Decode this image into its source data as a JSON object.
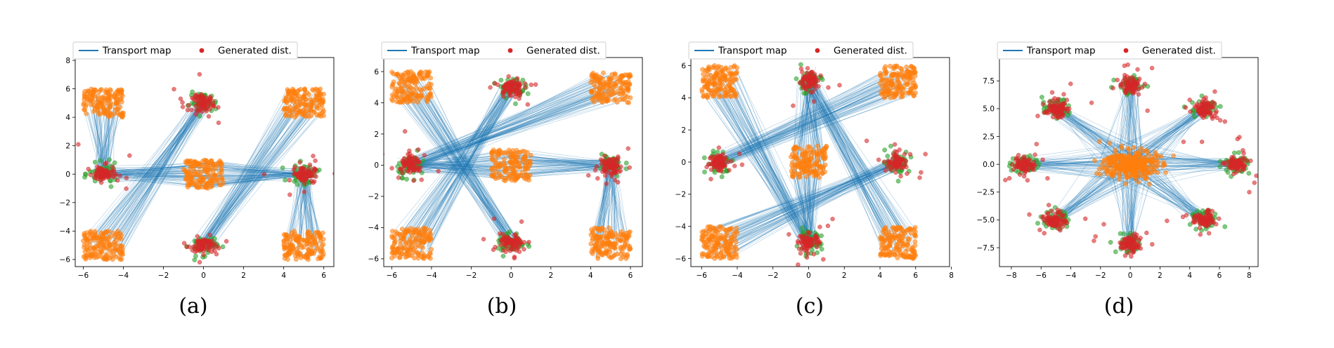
{
  "legend": {
    "line_label": "Transport map",
    "points_label": "Generated dist."
  },
  "colors": {
    "transport": "#1f77b4",
    "source": "#ff7f0e",
    "target": "#2ca02c",
    "generated": "#d62728"
  },
  "chart_data": [
    {
      "type": "scatter",
      "caption": "(a)",
      "xlim": [
        -6.4,
        6.5
      ],
      "ylim": [
        -6.5,
        8.2
      ],
      "xticks": [
        -6,
        -4,
        -2,
        0,
        2,
        4,
        6
      ],
      "yticks": [
        -6,
        -4,
        -2,
        0,
        2,
        4,
        6,
        8
      ],
      "xtick_labels": [
        "−6",
        "−4",
        "−2",
        "0",
        "2",
        "4",
        "6"
      ],
      "ytick_labels": [
        "−6",
        "−4",
        "−2",
        "0",
        "2",
        "4",
        "6",
        "8"
      ],
      "source_centers": [
        [
          -5,
          5
        ],
        [
          -5,
          -5
        ],
        [
          0,
          0
        ],
        [
          5,
          5
        ],
        [
          5,
          -5
        ]
      ],
      "target_centers": [
        [
          0,
          5
        ],
        [
          0,
          -5
        ],
        [
          -5,
          0
        ],
        [
          5,
          0
        ]
      ],
      "transport_pairs": [
        [
          [
            -5,
            5
          ],
          [
            -5,
            0
          ]
        ],
        [
          [
            -5,
            -5
          ],
          [
            0,
            5
          ]
        ],
        [
          [
            0,
            0
          ],
          [
            -5,
            0
          ]
        ],
        [
          [
            0,
            0
          ],
          [
            5,
            0
          ]
        ],
        [
          [
            5,
            5
          ],
          [
            0,
            -5
          ]
        ],
        [
          [
            5,
            -5
          ],
          [
            5,
            0
          ]
        ]
      ],
      "source_spread": 1.0,
      "target_spread": 0.35,
      "grid": false,
      "legend_position": "top-left"
    },
    {
      "type": "scatter",
      "caption": "(b)",
      "xlim": [
        -6.4,
        6.6
      ],
      "ylim": [
        -6.5,
        6.9
      ],
      "xticks": [
        -6,
        -4,
        -2,
        0,
        2,
        4,
        6
      ],
      "yticks": [
        -6,
        -4,
        -2,
        0,
        2,
        4,
        6
      ],
      "xtick_labels": [
        "−6",
        "−4",
        "−2",
        "0",
        "2",
        "4",
        "6"
      ],
      "ytick_labels": [
        "−6",
        "−4",
        "−2",
        "0",
        "2",
        "4",
        "6"
      ],
      "source_centers": [
        [
          -5,
          5
        ],
        [
          -5,
          -5
        ],
        [
          0,
          0
        ],
        [
          5,
          5
        ],
        [
          5,
          -5
        ]
      ],
      "target_centers": [
        [
          0,
          5
        ],
        [
          0,
          -5
        ],
        [
          -5,
          0
        ],
        [
          5,
          0
        ]
      ],
      "transport_pairs": [
        [
          [
            -5,
            5
          ],
          [
            0,
            -5
          ]
        ],
        [
          [
            -5,
            -5
          ],
          [
            0,
            5
          ]
        ],
        [
          [
            0,
            0
          ],
          [
            -5,
            0
          ]
        ],
        [
          [
            0,
            0
          ],
          [
            5,
            0
          ]
        ],
        [
          [
            5,
            5
          ],
          [
            -5,
            0
          ]
        ],
        [
          [
            5,
            -5
          ],
          [
            5,
            0
          ]
        ]
      ],
      "source_spread": 1.0,
      "target_spread": 0.35,
      "grid": false,
      "legend_position": "top-left"
    },
    {
      "type": "scatter",
      "caption": "(c)",
      "xlim": [
        -6.6,
        7.9
      ],
      "ylim": [
        -6.5,
        6.5
      ],
      "xticks": [
        -6,
        -4,
        -2,
        0,
        2,
        4,
        6,
        8
      ],
      "yticks": [
        -6,
        -4,
        -2,
        0,
        2,
        4,
        6
      ],
      "xtick_labels": [
        "−6",
        "−4",
        "−2",
        "0",
        "2",
        "4",
        "6",
        "8"
      ],
      "ytick_labels": [
        "−6",
        "−4",
        "−2",
        "0",
        "2",
        "4",
        "6"
      ],
      "source_centers": [
        [
          -5,
          5
        ],
        [
          -5,
          -5
        ],
        [
          0,
          0
        ],
        [
          5,
          5
        ],
        [
          5,
          -5
        ]
      ],
      "target_centers": [
        [
          0,
          5
        ],
        [
          0,
          -5
        ],
        [
          -5,
          0
        ],
        [
          5,
          0
        ]
      ],
      "transport_pairs": [
        [
          [
            -5,
            5
          ],
          [
            0,
            -5
          ]
        ],
        [
          [
            -5,
            -5
          ],
          [
            5,
            0
          ]
        ],
        [
          [
            0,
            0
          ],
          [
            0,
            5
          ]
        ],
        [
          [
            0,
            0
          ],
          [
            0,
            -5
          ]
        ],
        [
          [
            5,
            5
          ],
          [
            -5,
            0
          ]
        ],
        [
          [
            5,
            -5
          ],
          [
            0,
            5
          ]
        ]
      ],
      "source_spread": 1.0,
      "target_spread": 0.35,
      "grid": false,
      "legend_position": "top-left"
    },
    {
      "type": "scatter",
      "caption": "(d)",
      "xlim": [
        -8.8,
        8.6
      ],
      "ylim": [
        -9.2,
        9.6
      ],
      "xticks": [
        -8,
        -6,
        -4,
        -2,
        0,
        2,
        4,
        6,
        8
      ],
      "yticks": [
        -7.5,
        -5,
        -2.5,
        0,
        2.5,
        5,
        7.5
      ],
      "xtick_labels": [
        "−8",
        "−6",
        "−4",
        "−2",
        "0",
        "2",
        "4",
        "6",
        "8"
      ],
      "ytick_labels": [
        "−7.5",
        "−5.0",
        "−2.5",
        "0.0",
        "2.5",
        "5.0",
        "7.5"
      ],
      "source_centers": [
        [
          0,
          0
        ]
      ],
      "target_centers": [
        [
          7.1,
          0
        ],
        [
          5,
          5
        ],
        [
          0,
          7.1
        ],
        [
          -5,
          5
        ],
        [
          -7.1,
          0
        ],
        [
          -5,
          -5
        ],
        [
          0,
          -7.1
        ],
        [
          5,
          -5
        ]
      ],
      "transport_pairs": [
        [
          [
            0,
            0
          ],
          [
            7.1,
            0
          ]
        ],
        [
          [
            0,
            0
          ],
          [
            5,
            5
          ]
        ],
        [
          [
            0,
            0
          ],
          [
            0,
            7.1
          ]
        ],
        [
          [
            0,
            0
          ],
          [
            -5,
            5
          ]
        ],
        [
          [
            0,
            0
          ],
          [
            -7.1,
            0
          ]
        ],
        [
          [
            0,
            0
          ],
          [
            -5,
            -5
          ]
        ],
        [
          [
            0,
            0
          ],
          [
            0,
            -7.1
          ]
        ],
        [
          [
            0,
            0
          ],
          [
            5,
            -5
          ]
        ]
      ],
      "source_spread": 1.6,
      "target_spread": 0.45,
      "grid": false,
      "legend_position": "top-left"
    }
  ]
}
